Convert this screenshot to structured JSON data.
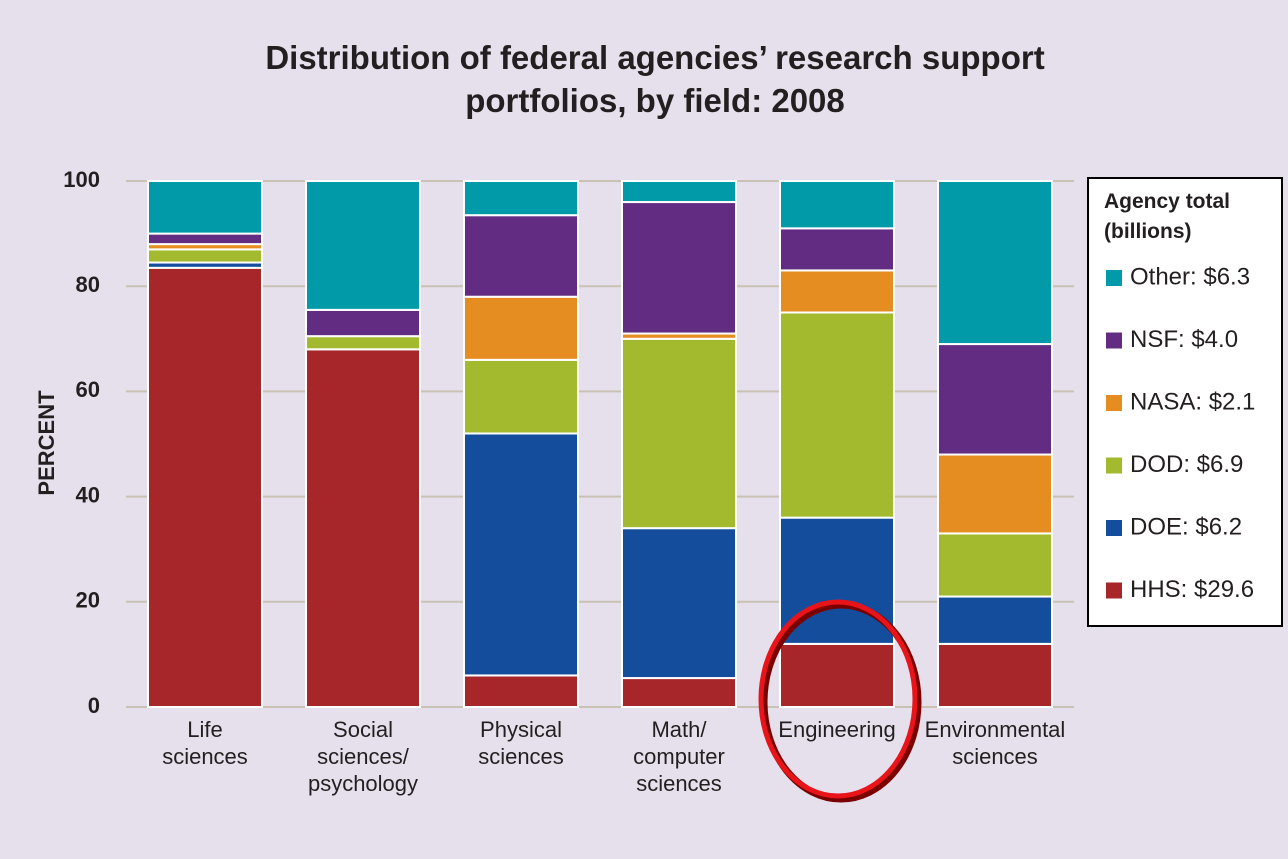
{
  "chart_data": {
    "type": "stacked_bar",
    "title": "Distribution of federal agencies’ research support\nportfolios, by field: 2008",
    "y_label": "PERCENT",
    "legend_title": "Agency total\n(billions)",
    "categories": [
      "Life\nsciences",
      "Social\nsciences/\npsychology",
      "Physical\nsciences",
      "Math/\ncomputer\nsciences",
      "Engineering",
      "Environmental\nsciences"
    ],
    "series": [
      {
        "name": "Other: $6.3",
        "color": "#009aa9",
        "values": [
          10,
          24.5,
          6.5,
          4,
          9,
          31
        ]
      },
      {
        "name": "NSF: $4.0",
        "color": "#622c83",
        "values": [
          2,
          5,
          15.5,
          25,
          8,
          21
        ]
      },
      {
        "name": "NASA: $2.1",
        "color": "#e68d22",
        "values": [
          1,
          0,
          12,
          1,
          8,
          15
        ]
      },
      {
        "name": "DOD: $6.9",
        "color": "#a3b92e",
        "values": [
          2.5,
          2.5,
          14,
          36,
          39,
          12
        ]
      },
      {
        "name": "DOE: $6.2",
        "color": "#134d9c",
        "values": [
          1,
          0,
          46,
          28.5,
          24,
          9
        ]
      },
      {
        "name": "HHS: $29.6",
        "color": "#a7262a",
        "values": [
          83.5,
          68,
          6,
          5.5,
          12,
          12
        ]
      }
    ],
    "ylim": [
      0,
      100
    ],
    "yticks": [
      0,
      20,
      40,
      60,
      80,
      100
    ],
    "grid": true,
    "legend": "right"
  }
}
